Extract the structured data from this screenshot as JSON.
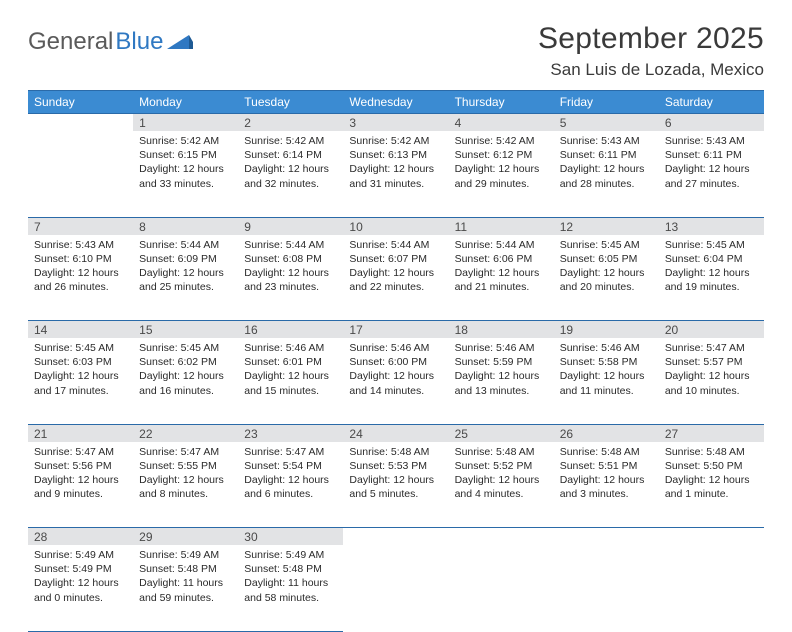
{
  "logo": {
    "text1": "General",
    "text2": "Blue"
  },
  "title": "September 2025",
  "location": "San Luis de Lozada, Mexico",
  "header_bg": "#3b8bd2",
  "header_border": "#2a6aa8",
  "daynum_bg": "#e2e3e5",
  "dayNames": [
    "Sunday",
    "Monday",
    "Tuesday",
    "Wednesday",
    "Thursday",
    "Friday",
    "Saturday"
  ],
  "weeks": [
    [
      null,
      {
        "n": "1",
        "sr": "5:42 AM",
        "ss": "6:15 PM",
        "dl": "12 hours and 33 minutes."
      },
      {
        "n": "2",
        "sr": "5:42 AM",
        "ss": "6:14 PM",
        "dl": "12 hours and 32 minutes."
      },
      {
        "n": "3",
        "sr": "5:42 AM",
        "ss": "6:13 PM",
        "dl": "12 hours and 31 minutes."
      },
      {
        "n": "4",
        "sr": "5:42 AM",
        "ss": "6:12 PM",
        "dl": "12 hours and 29 minutes."
      },
      {
        "n": "5",
        "sr": "5:43 AM",
        "ss": "6:11 PM",
        "dl": "12 hours and 28 minutes."
      },
      {
        "n": "6",
        "sr": "5:43 AM",
        "ss": "6:11 PM",
        "dl": "12 hours and 27 minutes."
      }
    ],
    [
      {
        "n": "7",
        "sr": "5:43 AM",
        "ss": "6:10 PM",
        "dl": "12 hours and 26 minutes."
      },
      {
        "n": "8",
        "sr": "5:44 AM",
        "ss": "6:09 PM",
        "dl": "12 hours and 25 minutes."
      },
      {
        "n": "9",
        "sr": "5:44 AM",
        "ss": "6:08 PM",
        "dl": "12 hours and 23 minutes."
      },
      {
        "n": "10",
        "sr": "5:44 AM",
        "ss": "6:07 PM",
        "dl": "12 hours and 22 minutes."
      },
      {
        "n": "11",
        "sr": "5:44 AM",
        "ss": "6:06 PM",
        "dl": "12 hours and 21 minutes."
      },
      {
        "n": "12",
        "sr": "5:45 AM",
        "ss": "6:05 PM",
        "dl": "12 hours and 20 minutes."
      },
      {
        "n": "13",
        "sr": "5:45 AM",
        "ss": "6:04 PM",
        "dl": "12 hours and 19 minutes."
      }
    ],
    [
      {
        "n": "14",
        "sr": "5:45 AM",
        "ss": "6:03 PM",
        "dl": "12 hours and 17 minutes."
      },
      {
        "n": "15",
        "sr": "5:45 AM",
        "ss": "6:02 PM",
        "dl": "12 hours and 16 minutes."
      },
      {
        "n": "16",
        "sr": "5:46 AM",
        "ss": "6:01 PM",
        "dl": "12 hours and 15 minutes."
      },
      {
        "n": "17",
        "sr": "5:46 AM",
        "ss": "6:00 PM",
        "dl": "12 hours and 14 minutes."
      },
      {
        "n": "18",
        "sr": "5:46 AM",
        "ss": "5:59 PM",
        "dl": "12 hours and 13 minutes."
      },
      {
        "n": "19",
        "sr": "5:46 AM",
        "ss": "5:58 PM",
        "dl": "12 hours and 11 minutes."
      },
      {
        "n": "20",
        "sr": "5:47 AM",
        "ss": "5:57 PM",
        "dl": "12 hours and 10 minutes."
      }
    ],
    [
      {
        "n": "21",
        "sr": "5:47 AM",
        "ss": "5:56 PM",
        "dl": "12 hours and 9 minutes."
      },
      {
        "n": "22",
        "sr": "5:47 AM",
        "ss": "5:55 PM",
        "dl": "12 hours and 8 minutes."
      },
      {
        "n": "23",
        "sr": "5:47 AM",
        "ss": "5:54 PM",
        "dl": "12 hours and 6 minutes."
      },
      {
        "n": "24",
        "sr": "5:48 AM",
        "ss": "5:53 PM",
        "dl": "12 hours and 5 minutes."
      },
      {
        "n": "25",
        "sr": "5:48 AM",
        "ss": "5:52 PM",
        "dl": "12 hours and 4 minutes."
      },
      {
        "n": "26",
        "sr": "5:48 AM",
        "ss": "5:51 PM",
        "dl": "12 hours and 3 minutes."
      },
      {
        "n": "27",
        "sr": "5:48 AM",
        "ss": "5:50 PM",
        "dl": "12 hours and 1 minute."
      }
    ],
    [
      {
        "n": "28",
        "sr": "5:49 AM",
        "ss": "5:49 PM",
        "dl": "12 hours and 0 minutes."
      },
      {
        "n": "29",
        "sr": "5:49 AM",
        "ss": "5:48 PM",
        "dl": "11 hours and 59 minutes."
      },
      {
        "n": "30",
        "sr": "5:49 AM",
        "ss": "5:48 PM",
        "dl": "11 hours and 58 minutes."
      },
      null,
      null,
      null,
      null
    ]
  ],
  "labels": {
    "sunrise": "Sunrise:",
    "sunset": "Sunset:",
    "daylight": "Daylight:"
  }
}
